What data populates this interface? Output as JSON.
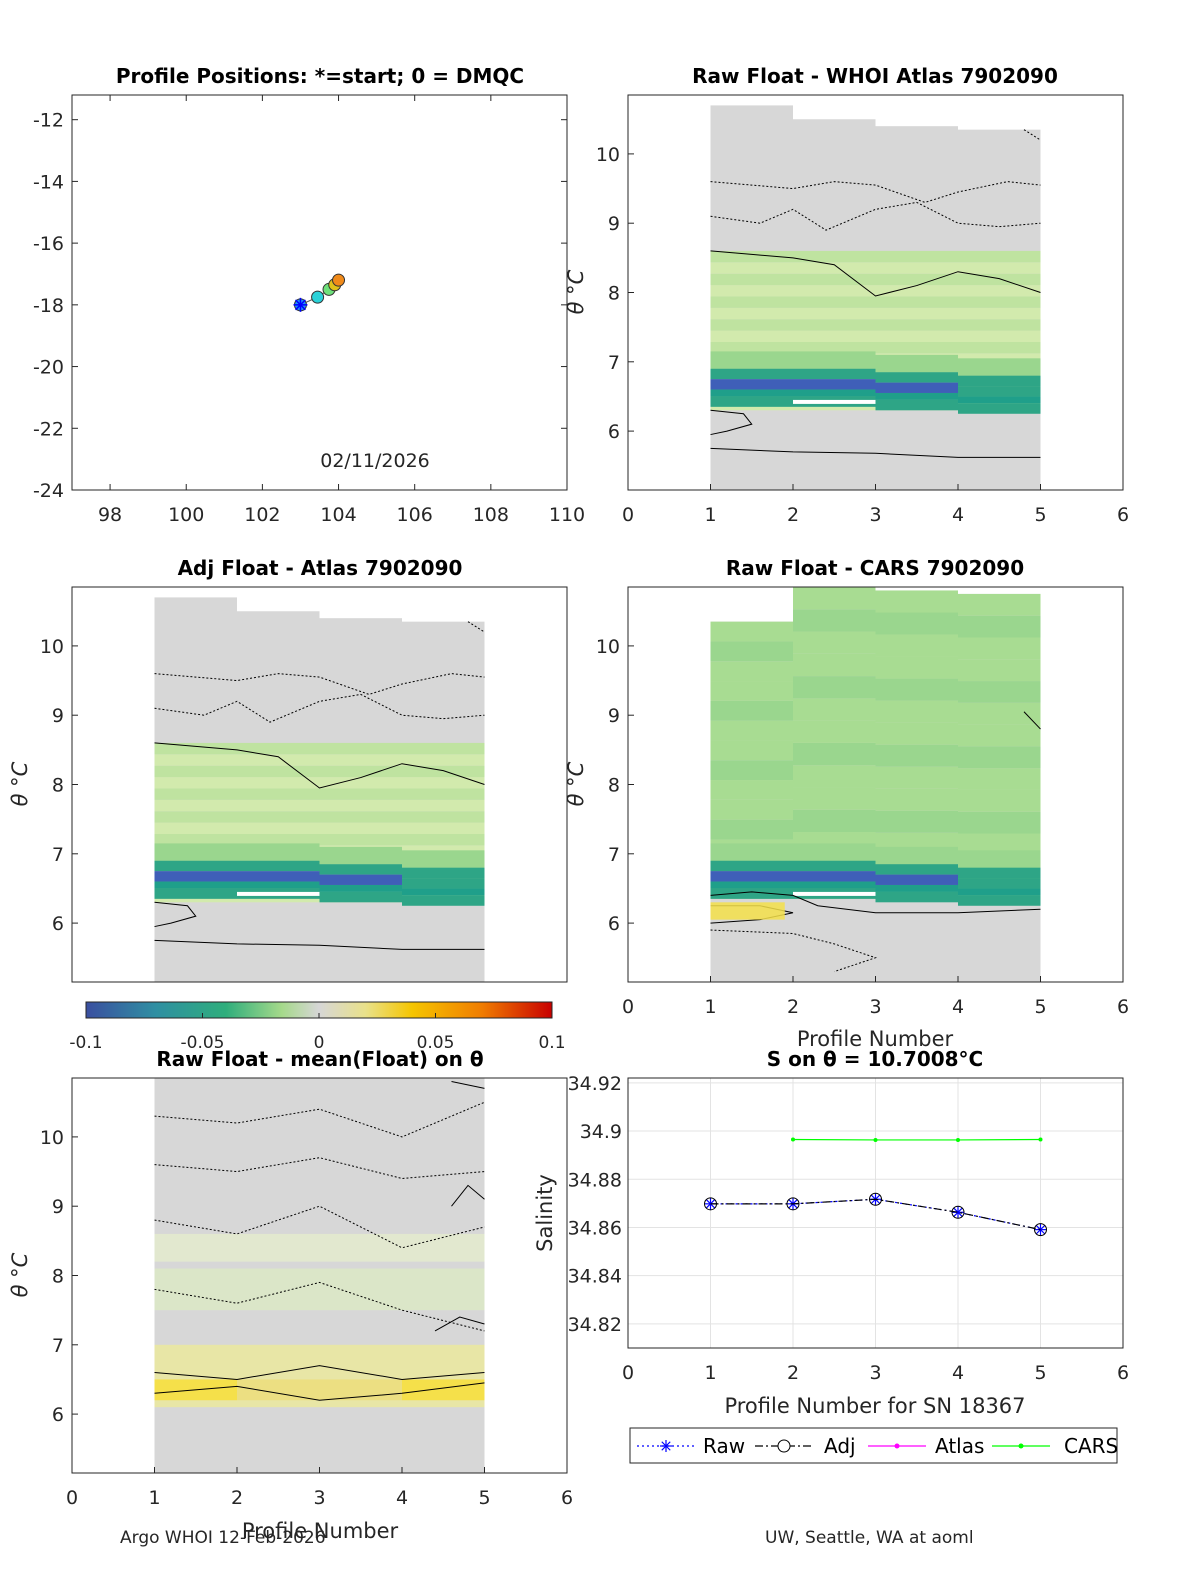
{
  "footer": {
    "left": "Argo WHOI 12-Feb-2026",
    "right": "UW, Seattle, WA at aoml"
  },
  "colors": {
    "raw": "#0000ff",
    "adj": "#000000",
    "atlas": "#ff00ff",
    "cars": "#00ff00",
    "panel_gray": "#d7d7d7",
    "green_light": "#d2eaad",
    "green_mid": "#9ad68e",
    "teal": "#2ea586",
    "blue": "#3f5fb8",
    "yellow": "#f5e04a"
  },
  "colormap": [
    "#3a4fa0",
    "#2f8fa2",
    "#2fae7c",
    "#a5d98a",
    "#d6d6d6",
    "#e9e18a",
    "#f5c500",
    "#f07c00",
    "#c80000"
  ],
  "panels": {
    "positions": {
      "title": "Profile Positions: *=start; 0 = DMQC",
      "date_label": "02/11/2026",
      "xticks": [
        "98",
        "100",
        "102",
        "104",
        "106",
        "108",
        "110"
      ],
      "yticks": [
        "-12",
        "-14",
        "-16",
        "-18",
        "-20",
        "-22",
        "-24"
      ]
    },
    "whoi": {
      "title": "Raw Float - WHOI Atlas  7902090",
      "ylabel": "θ °C",
      "xticks": [
        "0",
        "1",
        "2",
        "3",
        "4",
        "5",
        "6"
      ],
      "yticks": [
        "6",
        "7",
        "8",
        "9",
        "10"
      ]
    },
    "adj": {
      "title": "Adj Float - Atlas  7902090",
      "ylabel": "θ °C",
      "yticks": [
        "6",
        "7",
        "8",
        "9",
        "10"
      ]
    },
    "cars": {
      "title": "Raw Float - CARS  7902090",
      "ylabel": "θ °C",
      "xlabel": "Profile Number",
      "xticks": [
        "0",
        "1",
        "2",
        "3",
        "4",
        "5",
        "6"
      ],
      "yticks": [
        "6",
        "7",
        "8",
        "9",
        "10"
      ]
    },
    "anom": {
      "title": "Raw Float - mean(Float) on θ",
      "ylabel": "θ °C",
      "xlabel": "Profile Number",
      "xticks": [
        "0",
        "1",
        "2",
        "3",
        "4",
        "5",
        "6"
      ],
      "yticks": [
        "6",
        "7",
        "8",
        "9",
        "10"
      ]
    },
    "colorbar": {
      "ticks": [
        "-0.1",
        "-0.05",
        "0",
        "0.05",
        "0.1"
      ]
    }
  },
  "chart_data": [
    {
      "type": "scatter",
      "title": "Profile Positions: *=start; 0 = DMQC",
      "xlim": [
        97,
        110
      ],
      "ylim": [
        -24,
        -11.2
      ],
      "x": [
        103.0,
        103.45,
        103.75,
        103.9,
        104.0
      ],
      "y": [
        -18.0,
        -17.75,
        -17.5,
        -17.35,
        -17.2
      ],
      "point_colors": [
        "#1e90ff",
        "#2ad2d8",
        "#6ee07a",
        "#e0c21a",
        "#f08a1a"
      ],
      "annotation": "02/11/2026"
    },
    {
      "type": "heatmap",
      "title": "Raw Float - WHOI Atlas  7902090",
      "xlabel": "",
      "ylabel": "θ °C",
      "xlim": [
        0,
        6
      ],
      "ylim": [
        5.15,
        10.85
      ],
      "profile_tops": [
        10.7,
        10.5,
        10.4,
        10.35
      ],
      "bottom": 5.15
    },
    {
      "type": "heatmap",
      "title": "Adj Float - Atlas  7902090",
      "xlabel": "",
      "ylabel": "θ °C",
      "xlim": [
        0,
        6
      ],
      "ylim": [
        5.15,
        10.85
      ],
      "profile_tops": [
        10.7,
        10.5,
        10.4,
        10.35
      ],
      "bottom": 5.15
    },
    {
      "type": "heatmap",
      "title": "Raw Float - CARS  7902090",
      "xlabel": "Profile Number",
      "ylabel": "θ °C",
      "xlim": [
        0,
        6
      ],
      "ylim": [
        5.15,
        10.85
      ],
      "profile_tops": [
        10.35,
        10.85,
        10.8,
        10.75
      ],
      "bottom": 5.15
    },
    {
      "type": "heatmap",
      "title": "Raw Float - mean(Float) on θ",
      "xlabel": "Profile Number",
      "ylabel": "θ °C",
      "xlim": [
        0,
        6
      ],
      "ylim": [
        5.15,
        10.85
      ],
      "profile_tops": [
        10.85,
        10.85,
        10.85,
        10.85
      ],
      "bottom": 5.15
    },
    {
      "type": "line",
      "title": "S on θ = 10.7008°C",
      "xlabel": "Profile Number for SN 18367",
      "ylabel": "Salinity",
      "xlim": [
        0,
        6
      ],
      "ylim": [
        34.81,
        34.922
      ],
      "xticks": [
        "0",
        "1",
        "2",
        "3",
        "4",
        "5",
        "6"
      ],
      "yticks": [
        "34.82",
        "34.84",
        "34.86",
        "34.88",
        "34.9",
        "34.92"
      ],
      "series": [
        {
          "name": "Raw",
          "x": [
            1,
            2,
            3,
            4,
            5
          ],
          "values": [
            34.8698,
            34.8698,
            34.8717,
            34.8663,
            34.8591
          ],
          "color": "#0000ff",
          "style": "dotted",
          "marker": "*"
        },
        {
          "name": "Adj",
          "x": [
            1,
            2,
            3,
            4,
            5
          ],
          "values": [
            34.8698,
            34.8698,
            34.8717,
            34.8663,
            34.8591
          ],
          "color": "#000000",
          "style": "dashdot",
          "marker": "o"
        },
        {
          "name": "Atlas",
          "x": [],
          "values": [],
          "color": "#ff00ff",
          "style": "solid",
          "marker": "."
        },
        {
          "name": "CARS",
          "x": [
            2,
            3,
            4,
            5
          ],
          "values": [
            34.8965,
            34.8963,
            34.8963,
            34.8965
          ],
          "color": "#00ff00",
          "style": "solid",
          "marker": "."
        }
      ],
      "legend": [
        "Raw",
        "Adj",
        "Atlas",
        "CARS"
      ],
      "legend_position": "below"
    }
  ]
}
